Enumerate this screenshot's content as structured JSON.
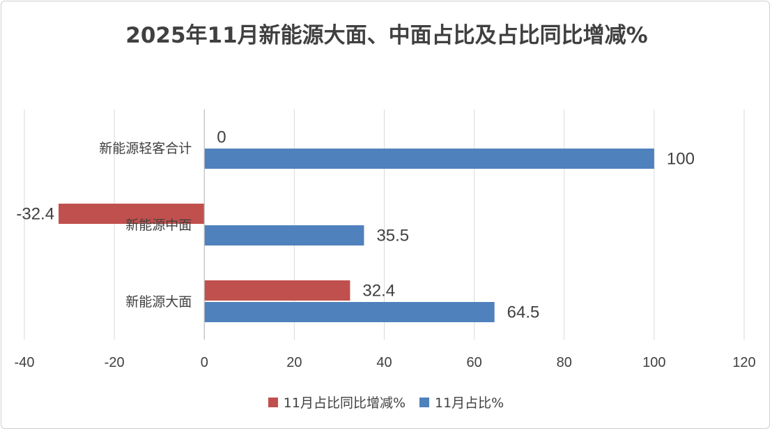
{
  "chart_data": {
    "type": "bar",
    "orientation": "horizontal",
    "title": "2025年11月新能源大面、中面占比及占比同比增减%",
    "categories": [
      "新能源大面",
      "新能源中面",
      "新能源轻客合计"
    ],
    "series": [
      {
        "name": "11月占比同比增减%",
        "color": "#C0504D",
        "values": [
          32.4,
          -32.4,
          0
        ]
      },
      {
        "name": "11月占比%",
        "color": "#4F81BD",
        "values": [
          64.5,
          35.5,
          100
        ]
      }
    ],
    "data_labels": {
      "11月占比同比增减%": [
        "32.4",
        "-32.4",
        "0"
      ],
      "11月占比%": [
        "64.5",
        "35.5",
        "100"
      ]
    },
    "xlim": [
      -40,
      120
    ],
    "x_ticks": [
      -40,
      -20,
      0,
      20,
      40,
      60,
      80,
      100,
      120
    ],
    "x_tick_labels": [
      "-40",
      "-20",
      "0",
      "20",
      "40",
      "60",
      "80",
      "100",
      "120"
    ],
    "grid": true,
    "legend_position": "bottom"
  }
}
